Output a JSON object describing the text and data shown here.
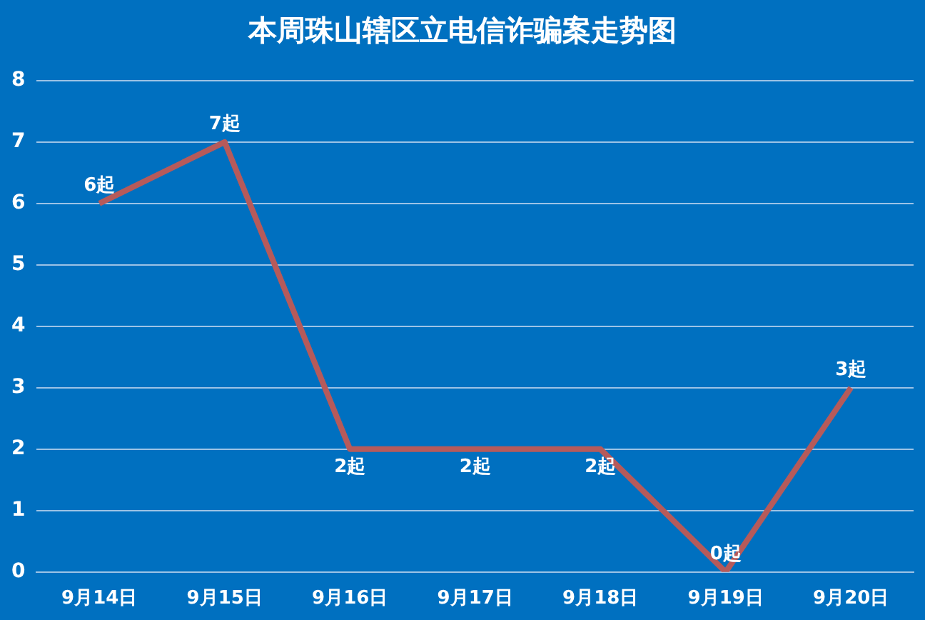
{
  "chart_data": {
    "type": "line",
    "title": "本周珠山辖区立电信诈骗案走势图",
    "categories": [
      "9月14日",
      "9月15日",
      "9月16日",
      "9月17日",
      "9月18日",
      "9月19日",
      "9月20日"
    ],
    "values": [
      6,
      7,
      2,
      2,
      2,
      0,
      3
    ],
    "value_labels": [
      "6起",
      "7起",
      "2起",
      "2起",
      "2起",
      "0起",
      "3起"
    ],
    "color": "#b65a5a",
    "ylim": [
      0,
      8
    ],
    "yticks": [
      0,
      1,
      2,
      3,
      4,
      5,
      6,
      7,
      8
    ],
    "grid": "y",
    "legend": false,
    "marker": "none"
  }
}
